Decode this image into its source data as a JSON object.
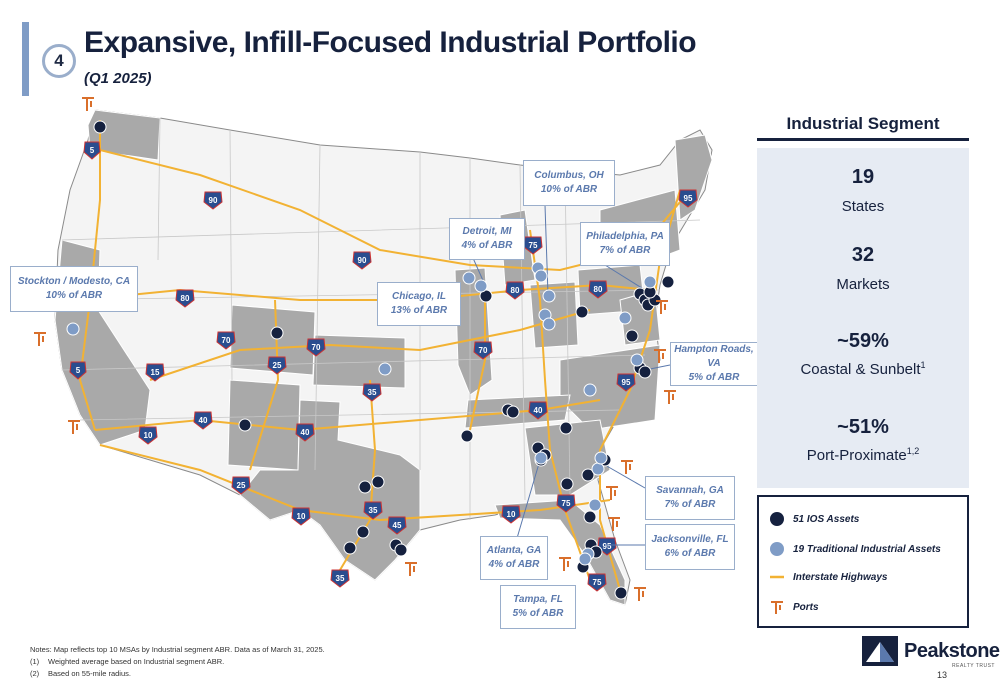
{
  "header": {
    "section_number": "4",
    "title": "Expansive, Infill-Focused Industrial Portfolio",
    "subtitle": "(Q1 2025)"
  },
  "callouts": [
    {
      "id": "stockton",
      "name": "Stockton / Modesto, CA",
      "share": "10% of ABR"
    },
    {
      "id": "chicago",
      "name": "Chicago, IL",
      "share": "13% of ABR"
    },
    {
      "id": "detroit",
      "name": "Detroit, MI",
      "share": "4% of ABR"
    },
    {
      "id": "columbus",
      "name": "Columbus, OH",
      "share": "10% of ABR"
    },
    {
      "id": "philadelphia",
      "name": "Philadelphia, PA",
      "share": "7% of ABR"
    },
    {
      "id": "hampton",
      "name": "Hampton Roads, VA",
      "share": "5% of ABR"
    },
    {
      "id": "savannah",
      "name": "Savannah, GA",
      "share": "7% of ABR"
    },
    {
      "id": "jacksonville",
      "name": "Jacksonville, FL",
      "share": "6% of ABR"
    },
    {
      "id": "atlanta",
      "name": "Atlanta, GA",
      "share": "4% of ABR"
    },
    {
      "id": "tampa",
      "name": "Tampa, FL",
      "share": "5% of ABR"
    }
  ],
  "interstates": [
    "5",
    "90",
    "80",
    "15",
    "70",
    "25",
    "70",
    "10",
    "40",
    "40",
    "25",
    "35",
    "35",
    "45",
    "10",
    "35",
    "90",
    "80",
    "75",
    "70",
    "40",
    "75",
    "95",
    "95",
    "75",
    "10",
    "80",
    "95",
    "5"
  ],
  "segment": {
    "heading": "Industrial Segment",
    "stats": [
      {
        "value": "19",
        "label": "States",
        "sup": ""
      },
      {
        "value": "32",
        "label": "Markets",
        "sup": ""
      },
      {
        "value": "~59%",
        "label": "Coastal & Sunbelt",
        "sup": "1"
      },
      {
        "value": "~51%",
        "label": "Port-Proximate",
        "sup": "1,2"
      }
    ]
  },
  "legend": [
    {
      "label": "51 IOS Assets",
      "icon": "dark-circle-icon"
    },
    {
      "label": "19 Traditional Industrial Assets",
      "icon": "light-circle-icon"
    },
    {
      "label": "Interstate Highways",
      "icon": "highway-line-icon"
    },
    {
      "label": "Ports",
      "icon": "port-crane-icon"
    }
  ],
  "colors": {
    "navy": "#16213d",
    "ios": "#15213f",
    "traditional": "#7f9cc6",
    "highway": "#f2b233",
    "port": "#d96f2b",
    "state_shade": "#a9a9a9",
    "state_light": "#f4f4f4",
    "interstate_shield": "#2a4d8f"
  },
  "notes": {
    "line1": "Notes: Map reflects top 10 MSAs by Industrial segment ABR. Data as of March 31, 2025.",
    "line2_num": "(1)",
    "line2": "Weighted average based on Industrial segment ABR.",
    "line3_num": "(2)",
    "line3": "Based on 55-mile radius."
  },
  "logo": {
    "name": "Peakstone",
    "tagline": "REALTY TRUST"
  },
  "page_number": "13"
}
